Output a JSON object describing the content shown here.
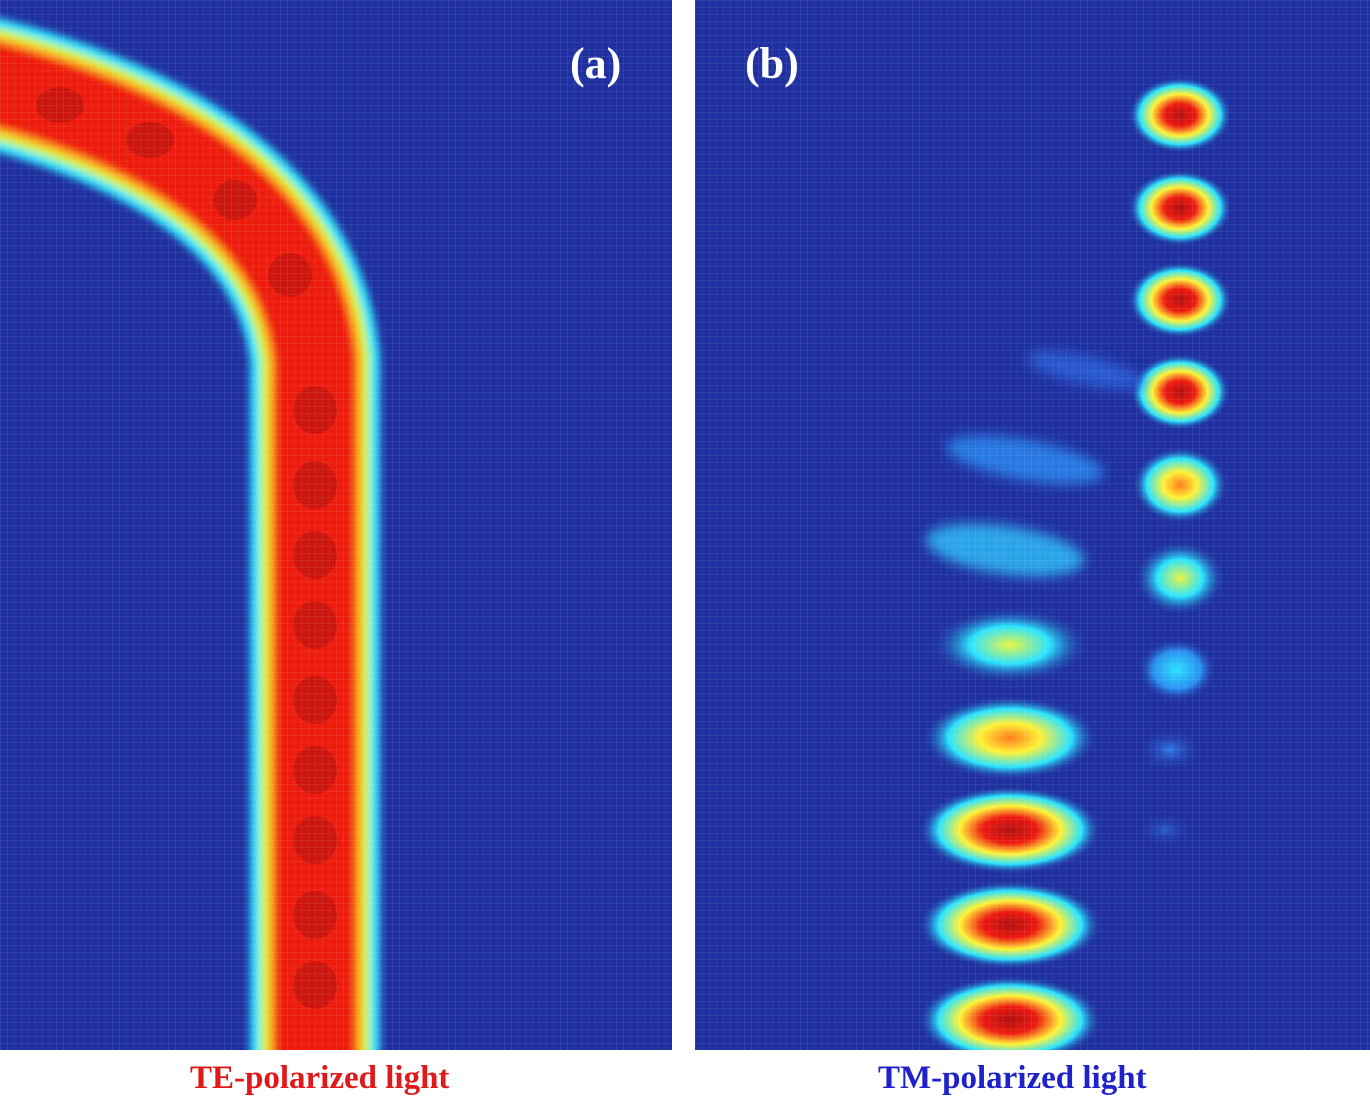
{
  "panels": [
    {
      "label": "(a)",
      "caption": "TE-polarized light",
      "caption_color": "#e0191b"
    },
    {
      "label": "(b)",
      "caption": "TM-polarized light",
      "caption_color": "#1e22c8"
    }
  ],
  "colors": {
    "background_field": "#1f30a0",
    "low": "#1f30a0",
    "cyan": "#29e3ff",
    "yellow": "#fff236",
    "red": "#ee1a10",
    "dark_red": "#b01010",
    "label": "#ffffff"
  },
  "colormap": "jet",
  "description_hidden": false
}
